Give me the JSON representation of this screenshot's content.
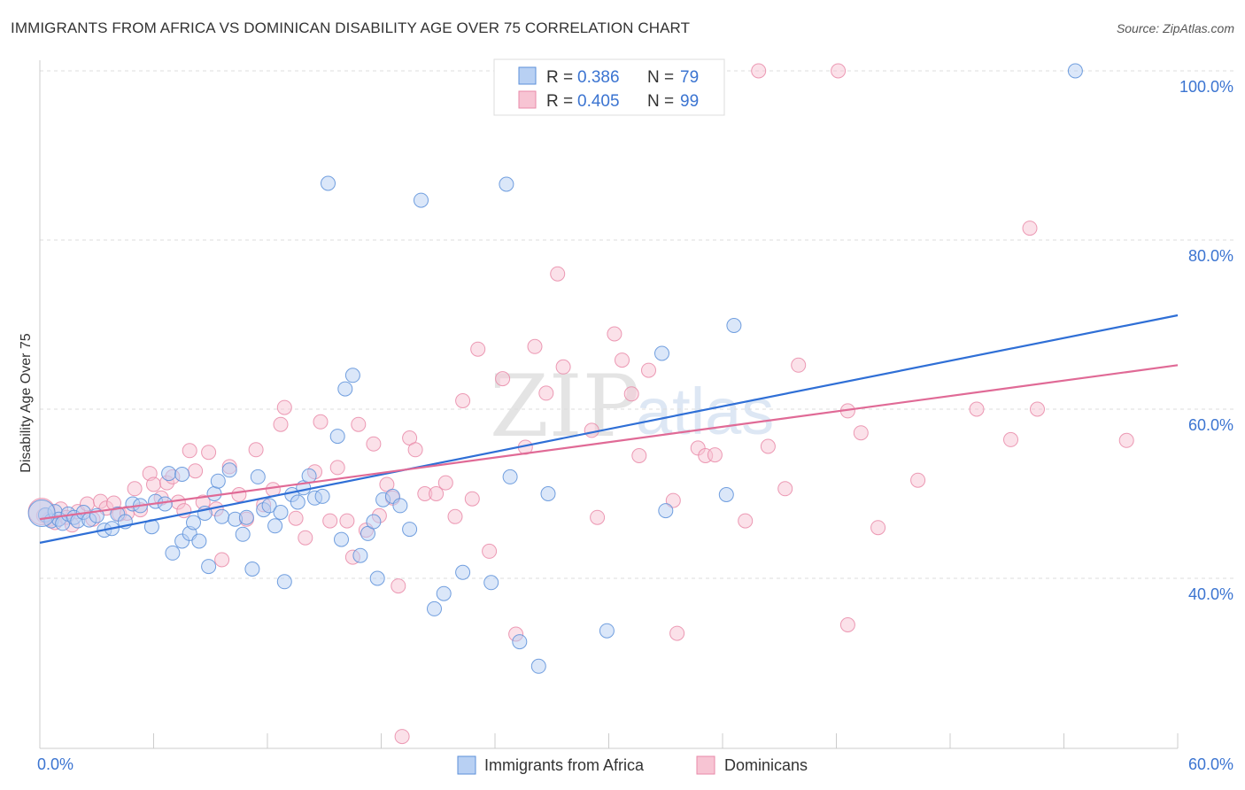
{
  "title": "IMMIGRANTS FROM AFRICA VS DOMINICAN DISABILITY AGE OVER 75 CORRELATION CHART",
  "source": "Source: ZipAtlas.com",
  "watermark": {
    "zip": "ZIP",
    "atlas": "atlas"
  },
  "colors": {
    "blue": "#5b8fd9",
    "blue_fill": "#b8d0f3",
    "blue_line": "#2f6fd6",
    "pink": "#e98aa8",
    "pink_fill": "#f7c4d3",
    "pink_line": "#e06a96",
    "tick_text": "#3b74d1"
  },
  "legend": {
    "r_label": "R =",
    "n_label": "N =",
    "series": [
      {
        "name": "Immigrants from Africa",
        "r": "0.386",
        "n": "79"
      },
      {
        "name": "Dominicans",
        "r": "0.405",
        "n": "99"
      }
    ]
  },
  "chart_data": {
    "type": "scatter",
    "title": "IMMIGRANTS FROM AFRICA VS DOMINICAN DISABILITY AGE OVER 75 CORRELATION CHART",
    "xlabel": "",
    "ylabel": "Disability Age Over 75",
    "xlim": [
      0,
      60
    ],
    "ylim": [
      20,
      104
    ],
    "x_tick_labels": [
      "0.0%",
      "60.0%"
    ],
    "y_ticks": [
      40,
      60,
      80,
      100
    ],
    "y_tick_labels": [
      "40.0%",
      "60.0%",
      "80.0%",
      "100.0%"
    ],
    "grid": "horizontal dashed",
    "legend_position": "top-center",
    "series": [
      {
        "name": "Immigrants from Africa",
        "color": "#5b8fd9",
        "trend": {
          "x0": 0,
          "y0": 44.2,
          "x1": 60,
          "y1": 71.1
        },
        "points": [
          [
            0.3,
            47.5
          ],
          [
            0.6,
            46.8
          ],
          [
            0.8,
            47.9
          ],
          [
            1.0,
            47.0
          ],
          [
            1.2,
            46.5
          ],
          [
            1.5,
            47.6
          ],
          [
            1.8,
            47.2
          ],
          [
            2.0,
            46.8
          ],
          [
            2.3,
            47.8
          ],
          [
            2.6,
            46.9
          ],
          [
            3.0,
            47.4
          ],
          [
            3.4,
            45.7
          ],
          [
            3.8,
            45.9
          ],
          [
            4.1,
            47.6
          ],
          [
            4.5,
            46.7
          ],
          [
            4.9,
            48.8
          ],
          [
            5.3,
            48.6
          ],
          [
            5.9,
            46.1
          ],
          [
            6.1,
            49.1
          ],
          [
            6.6,
            48.8
          ],
          [
            6.8,
            52.4
          ],
          [
            7.0,
            43.0
          ],
          [
            7.5,
            52.3
          ],
          [
            7.5,
            44.4
          ],
          [
            7.9,
            45.3
          ],
          [
            8.1,
            46.6
          ],
          [
            8.4,
            44.4
          ],
          [
            8.7,
            47.7
          ],
          [
            8.9,
            41.4
          ],
          [
            9.2,
            50.0
          ],
          [
            9.4,
            51.5
          ],
          [
            9.6,
            47.3
          ],
          [
            10.0,
            52.8
          ],
          [
            10.3,
            47.0
          ],
          [
            10.7,
            45.2
          ],
          [
            10.9,
            47.2
          ],
          [
            11.2,
            41.1
          ],
          [
            11.5,
            52.0
          ],
          [
            11.8,
            48.1
          ],
          [
            12.1,
            48.6
          ],
          [
            12.4,
            46.2
          ],
          [
            12.7,
            47.8
          ],
          [
            12.9,
            39.6
          ],
          [
            13.3,
            49.9
          ],
          [
            13.6,
            49.0
          ],
          [
            13.9,
            50.7
          ],
          [
            14.2,
            52.1
          ],
          [
            14.5,
            49.5
          ],
          [
            14.9,
            49.7
          ],
          [
            15.2,
            86.7
          ],
          [
            15.7,
            56.8
          ],
          [
            15.9,
            44.6
          ],
          [
            16.1,
            62.4
          ],
          [
            16.5,
            64.0
          ],
          [
            16.9,
            42.7
          ],
          [
            17.3,
            45.3
          ],
          [
            17.6,
            46.7
          ],
          [
            17.8,
            40.0
          ],
          [
            18.1,
            49.3
          ],
          [
            18.6,
            49.7
          ],
          [
            19.0,
            48.6
          ],
          [
            19.5,
            45.8
          ],
          [
            20.1,
            84.7
          ],
          [
            20.8,
            36.4
          ],
          [
            21.3,
            38.2
          ],
          [
            22.3,
            40.7
          ],
          [
            23.8,
            39.5
          ],
          [
            24.6,
            86.6
          ],
          [
            24.8,
            52.0
          ],
          [
            25.3,
            32.5
          ],
          [
            26.3,
            29.6
          ],
          [
            26.8,
            50.0
          ],
          [
            29.9,
            33.8
          ],
          [
            32.8,
            66.6
          ],
          [
            33.0,
            48.0
          ],
          [
            36.2,
            49.9
          ],
          [
            36.6,
            69.9
          ],
          [
            54.6,
            100.0
          ],
          [
            0.1,
            47.7
          ]
        ]
      },
      {
        "name": "Dominicans",
        "color": "#e98aa8",
        "trend": {
          "x0": 0,
          "y0": 47.0,
          "x1": 60,
          "y1": 65.2
        },
        "points": [
          [
            0.2,
            47.4
          ],
          [
            0.5,
            47.0
          ],
          [
            0.8,
            46.6
          ],
          [
            1.1,
            48.2
          ],
          [
            1.4,
            47.2
          ],
          [
            1.7,
            46.3
          ],
          [
            2.0,
            47.9
          ],
          [
            2.5,
            48.8
          ],
          [
            2.8,
            47.0
          ],
          [
            3.2,
            49.1
          ],
          [
            3.5,
            48.3
          ],
          [
            3.9,
            48.9
          ],
          [
            4.2,
            47.6
          ],
          [
            4.6,
            47.7
          ],
          [
            5.0,
            50.6
          ],
          [
            5.3,
            48.1
          ],
          [
            5.8,
            52.4
          ],
          [
            6.0,
            51.1
          ],
          [
            6.4,
            49.5
          ],
          [
            6.7,
            51.3
          ],
          [
            7.0,
            52.0
          ],
          [
            7.3,
            49.0
          ],
          [
            7.6,
            48.0
          ],
          [
            7.9,
            55.1
          ],
          [
            8.2,
            52.7
          ],
          [
            8.6,
            49.0
          ],
          [
            8.9,
            54.9
          ],
          [
            9.3,
            48.2
          ],
          [
            9.6,
            42.2
          ],
          [
            10.0,
            53.2
          ],
          [
            10.5,
            49.9
          ],
          [
            10.9,
            47.0
          ],
          [
            11.4,
            55.2
          ],
          [
            11.8,
            48.7
          ],
          [
            12.3,
            50.5
          ],
          [
            12.7,
            58.2
          ],
          [
            12.9,
            60.2
          ],
          [
            13.5,
            47.1
          ],
          [
            14.0,
            44.8
          ],
          [
            14.5,
            52.6
          ],
          [
            14.8,
            58.5
          ],
          [
            15.3,
            46.8
          ],
          [
            15.7,
            53.1
          ],
          [
            16.2,
            46.8
          ],
          [
            16.5,
            42.5
          ],
          [
            16.8,
            58.2
          ],
          [
            17.2,
            45.7
          ],
          [
            17.6,
            55.9
          ],
          [
            17.9,
            47.4
          ],
          [
            18.3,
            51.1
          ],
          [
            18.6,
            49.5
          ],
          [
            18.9,
            39.1
          ],
          [
            19.1,
            21.3
          ],
          [
            19.5,
            56.6
          ],
          [
            19.8,
            55.2
          ],
          [
            20.3,
            50.0
          ],
          [
            20.9,
            50.0
          ],
          [
            21.4,
            51.3
          ],
          [
            21.9,
            47.3
          ],
          [
            22.3,
            61.0
          ],
          [
            22.8,
            49.4
          ],
          [
            23.1,
            67.1
          ],
          [
            23.7,
            43.2
          ],
          [
            24.4,
            63.6
          ],
          [
            25.1,
            33.4
          ],
          [
            25.6,
            55.5
          ],
          [
            26.1,
            67.4
          ],
          [
            26.7,
            61.9
          ],
          [
            27.3,
            76.0
          ],
          [
            27.6,
            65.0
          ],
          [
            29.1,
            57.5
          ],
          [
            29.4,
            47.2
          ],
          [
            30.3,
            68.9
          ],
          [
            30.7,
            65.8
          ],
          [
            31.2,
            61.8
          ],
          [
            31.6,
            54.5
          ],
          [
            32.1,
            64.6
          ],
          [
            33.4,
            49.2
          ],
          [
            33.6,
            33.5
          ],
          [
            34.7,
            55.4
          ],
          [
            35.1,
            54.5
          ],
          [
            35.6,
            54.6
          ],
          [
            37.2,
            46.8
          ],
          [
            37.9,
            100.0
          ],
          [
            38.4,
            55.6
          ],
          [
            39.3,
            50.6
          ],
          [
            40.0,
            65.2
          ],
          [
            42.1,
            100.0
          ],
          [
            42.6,
            34.5
          ],
          [
            42.6,
            59.8
          ],
          [
            43.3,
            57.2
          ],
          [
            44.2,
            46.0
          ],
          [
            46.3,
            51.6
          ],
          [
            49.4,
            60.0
          ],
          [
            51.2,
            56.4
          ],
          [
            52.2,
            81.4
          ],
          [
            52.6,
            60.0
          ],
          [
            57.3,
            56.3
          ],
          [
            0.1,
            47.9
          ]
        ]
      }
    ]
  }
}
